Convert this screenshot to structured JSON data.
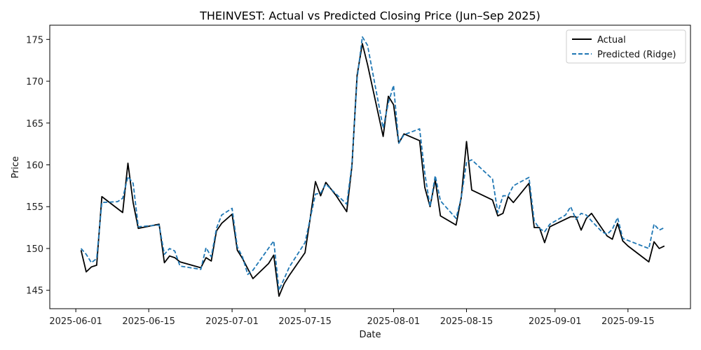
{
  "chart_data": {
    "type": "line",
    "title": "THEINVEST: Actual vs Predicted Closing Price (Jun–Sep 2025)",
    "xlabel": "Date",
    "ylabel": "Price",
    "xlim": [
      "2025-05-27",
      "2025-09-27"
    ],
    "ylim": [
      142.8,
      176.7
    ],
    "x_ticks": [
      "2025-06-01",
      "2025-06-15",
      "2025-07-01",
      "2025-07-15",
      "2025-08-01",
      "2025-08-15",
      "2025-09-01",
      "2025-09-15"
    ],
    "y_ticks": [
      145,
      150,
      155,
      160,
      165,
      170,
      175
    ],
    "grid": false,
    "legend_position": "top-right",
    "colors": {
      "actual": "#000000",
      "predicted": "#1f77b4"
    },
    "series": [
      {
        "name": "Actual",
        "style": "solid",
        "color": "#000000",
        "points": [
          [
            "2025-06-02",
            149.8
          ],
          [
            "2025-06-03",
            147.2
          ],
          [
            "2025-06-04",
            147.8
          ],
          [
            "2025-06-05",
            148.0
          ],
          [
            "2025-06-06",
            156.2
          ],
          [
            "2025-06-10",
            154.3
          ],
          [
            "2025-06-11",
            160.2
          ],
          [
            "2025-06-12",
            155.5
          ],
          [
            "2025-06-13",
            152.4
          ],
          [
            "2025-06-17",
            152.9
          ],
          [
            "2025-06-18",
            148.3
          ],
          [
            "2025-06-19",
            149.1
          ],
          [
            "2025-06-20",
            148.9
          ],
          [
            "2025-06-21",
            148.4
          ],
          [
            "2025-06-25",
            147.7
          ],
          [
            "2025-06-26",
            148.9
          ],
          [
            "2025-06-27",
            148.5
          ],
          [
            "2025-06-28",
            152.1
          ],
          [
            "2025-06-29",
            153.0
          ],
          [
            "2025-07-01",
            154.1
          ],
          [
            "2025-07-02",
            149.8
          ],
          [
            "2025-07-03",
            148.8
          ],
          [
            "2025-07-05",
            146.4
          ],
          [
            "2025-07-08",
            148.2
          ],
          [
            "2025-07-09",
            149.2
          ],
          [
            "2025-07-10",
            144.3
          ],
          [
            "2025-07-11",
            145.8
          ],
          [
            "2025-07-12",
            146.8
          ],
          [
            "2025-07-15",
            149.5
          ],
          [
            "2025-07-16",
            153.6
          ],
          [
            "2025-07-17",
            158.0
          ],
          [
            "2025-07-18",
            156.3
          ],
          [
            "2025-07-19",
            157.9
          ],
          [
            "2025-07-21",
            156.3
          ],
          [
            "2025-07-23",
            154.4
          ],
          [
            "2025-07-24",
            159.8
          ],
          [
            "2025-07-25",
            170.7
          ],
          [
            "2025-07-26",
            174.5
          ],
          [
            "2025-07-27",
            172.0
          ],
          [
            "2025-07-30",
            163.4
          ],
          [
            "2025-07-31",
            168.2
          ],
          [
            "2025-08-01",
            167.2
          ],
          [
            "2025-08-02",
            162.6
          ],
          [
            "2025-08-03",
            163.7
          ],
          [
            "2025-08-06",
            162.9
          ],
          [
            "2025-08-07",
            157.3
          ],
          [
            "2025-08-08",
            155.0
          ],
          [
            "2025-08-09",
            158.2
          ],
          [
            "2025-08-10",
            153.9
          ],
          [
            "2025-08-13",
            152.8
          ],
          [
            "2025-08-14",
            156.1
          ],
          [
            "2025-08-15",
            162.8
          ],
          [
            "2025-08-16",
            157.0
          ],
          [
            "2025-08-20",
            155.8
          ],
          [
            "2025-08-21",
            153.9
          ],
          [
            "2025-08-22",
            154.2
          ],
          [
            "2025-08-23",
            156.2
          ],
          [
            "2025-08-24",
            155.5
          ],
          [
            "2025-08-27",
            157.8
          ],
          [
            "2025-08-28",
            152.5
          ],
          [
            "2025-08-29",
            152.5
          ],
          [
            "2025-08-30",
            150.7
          ],
          [
            "2025-08-31",
            152.6
          ],
          [
            "2025-09-04",
            153.8
          ],
          [
            "2025-09-05",
            153.8
          ],
          [
            "2025-09-06",
            152.2
          ],
          [
            "2025-09-07",
            153.6
          ],
          [
            "2025-09-08",
            154.2
          ],
          [
            "2025-09-11",
            151.5
          ],
          [
            "2025-09-12",
            151.1
          ],
          [
            "2025-09-13",
            153.0
          ],
          [
            "2025-09-14",
            150.9
          ],
          [
            "2025-09-15",
            150.3
          ],
          [
            "2025-09-19",
            148.4
          ],
          [
            "2025-09-20",
            150.8
          ],
          [
            "2025-09-21",
            150.0
          ],
          [
            "2025-09-22",
            150.3
          ]
        ]
      },
      {
        "name": "Predicted (Ridge)",
        "style": "dashed",
        "color": "#1f77b4",
        "points": [
          [
            "2025-06-02",
            150.0
          ],
          [
            "2025-06-03",
            149.3
          ],
          [
            "2025-06-04",
            148.3
          ],
          [
            "2025-06-05",
            148.8
          ],
          [
            "2025-06-06",
            155.5
          ],
          [
            "2025-06-09",
            155.6
          ],
          [
            "2025-06-10",
            156.0
          ],
          [
            "2025-06-11",
            158.6
          ],
          [
            "2025-06-12",
            157.8
          ],
          [
            "2025-06-13",
            152.6
          ],
          [
            "2025-06-17",
            152.8
          ],
          [
            "2025-06-18",
            149.3
          ],
          [
            "2025-06-19",
            150.0
          ],
          [
            "2025-06-20",
            149.7
          ],
          [
            "2025-06-21",
            147.9
          ],
          [
            "2025-06-25",
            147.5
          ],
          [
            "2025-06-26",
            150.1
          ],
          [
            "2025-06-27",
            149.0
          ],
          [
            "2025-06-28",
            152.4
          ],
          [
            "2025-06-29",
            154.0
          ],
          [
            "2025-07-01",
            154.8
          ],
          [
            "2025-07-02",
            150.2
          ],
          [
            "2025-07-03",
            149.0
          ],
          [
            "2025-07-04",
            146.9
          ],
          [
            "2025-07-05",
            147.4
          ],
          [
            "2025-07-09",
            150.9
          ],
          [
            "2025-07-10",
            145.0
          ],
          [
            "2025-07-12",
            147.8
          ],
          [
            "2025-07-15",
            150.7
          ],
          [
            "2025-07-17",
            156.5
          ],
          [
            "2025-07-18",
            156.6
          ],
          [
            "2025-07-19",
            157.7
          ],
          [
            "2025-07-23",
            155.3
          ],
          [
            "2025-07-24",
            160.0
          ],
          [
            "2025-07-25",
            170.3
          ],
          [
            "2025-07-26",
            175.3
          ],
          [
            "2025-07-27",
            174.3
          ],
          [
            "2025-07-30",
            164.4
          ],
          [
            "2025-07-31",
            167.4
          ],
          [
            "2025-08-01",
            169.5
          ],
          [
            "2025-08-02",
            162.6
          ],
          [
            "2025-08-03",
            163.6
          ],
          [
            "2025-08-06",
            164.3
          ],
          [
            "2025-08-07",
            159.0
          ],
          [
            "2025-08-08",
            155.0
          ],
          [
            "2025-08-09",
            158.7
          ],
          [
            "2025-08-10",
            155.7
          ],
          [
            "2025-08-13",
            153.6
          ],
          [
            "2025-08-14",
            156.1
          ],
          [
            "2025-08-15",
            160.3
          ],
          [
            "2025-08-16",
            160.6
          ],
          [
            "2025-08-20",
            158.3
          ],
          [
            "2025-08-21",
            154.3
          ],
          [
            "2025-08-22",
            156.3
          ],
          [
            "2025-08-23",
            156.3
          ],
          [
            "2025-08-24",
            157.5
          ],
          [
            "2025-08-27",
            158.5
          ],
          [
            "2025-08-28",
            153.3
          ],
          [
            "2025-08-29",
            152.4
          ],
          [
            "2025-08-30",
            152.0
          ],
          [
            "2025-08-31",
            152.9
          ],
          [
            "2025-09-03",
            154.0
          ],
          [
            "2025-09-04",
            155.0
          ],
          [
            "2025-09-05",
            153.5
          ],
          [
            "2025-09-06",
            154.2
          ],
          [
            "2025-09-07",
            154.0
          ],
          [
            "2025-09-08",
            153.3
          ],
          [
            "2025-09-10",
            152.0
          ],
          [
            "2025-09-11",
            151.7
          ],
          [
            "2025-09-12",
            152.3
          ],
          [
            "2025-09-13",
            153.7
          ],
          [
            "2025-09-14",
            151.2
          ],
          [
            "2025-09-19",
            150.0
          ],
          [
            "2025-09-20",
            152.9
          ],
          [
            "2025-09-21",
            152.2
          ],
          [
            "2025-09-22",
            152.5
          ]
        ]
      }
    ]
  }
}
